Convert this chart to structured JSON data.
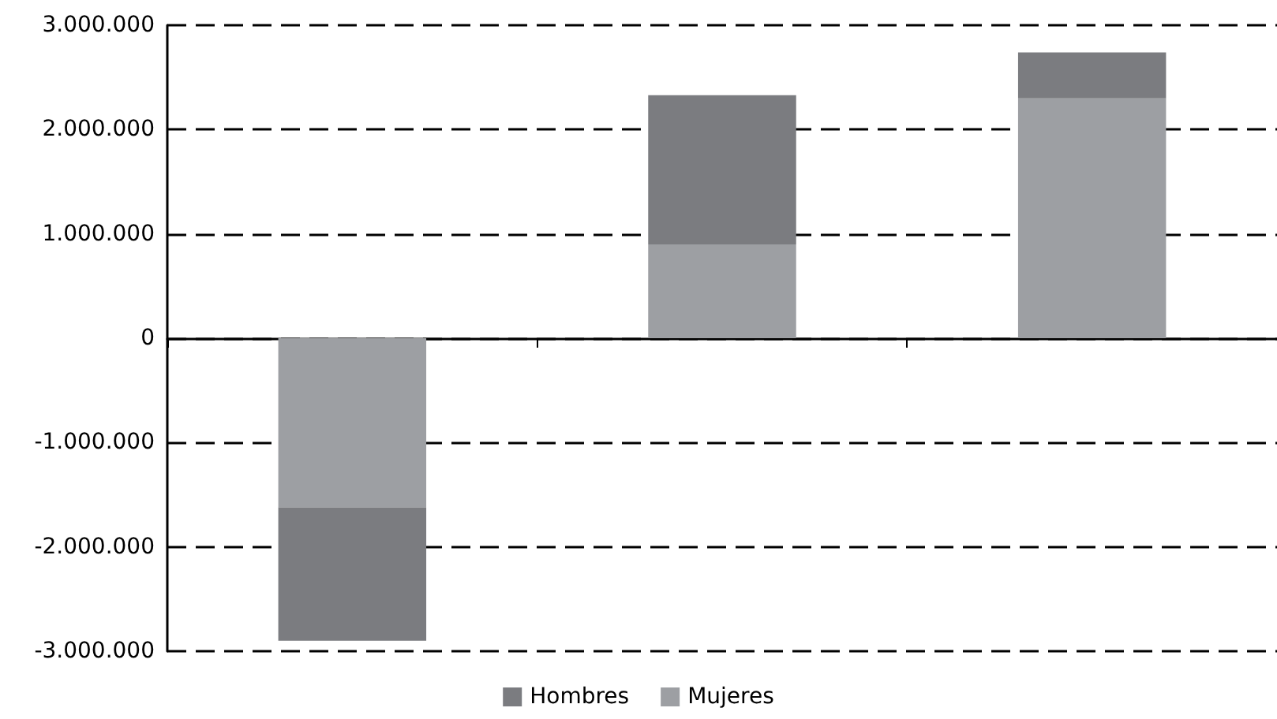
{
  "chart_data": {
    "type": "bar",
    "stacked": true,
    "categories": [
      null,
      null,
      null
    ],
    "series": [
      {
        "name": "Mujeres",
        "color": "#9d9fa3",
        "values": [
          -1620000,
          900000,
          2300000
        ]
      },
      {
        "name": "Hombres",
        "color": "#7b7c80",
        "values": [
          -1280000,
          1430000,
          440000
        ]
      }
    ],
    "ylim": [
      -3000000,
      3000000
    ],
    "yticks": [
      {
        "value": -3000000,
        "label": "-3.000.000"
      },
      {
        "value": -2000000,
        "label": "-2.000.000"
      },
      {
        "value": -1000000,
        "label": "-1.000.000"
      },
      0,
      {
        "value": 1000000,
        "label": "1.000.000"
      },
      {
        "value": 2000000,
        "label": "2.000.000"
      },
      {
        "value": 3000000,
        "label": "3.000.000"
      }
    ],
    "grid": "y",
    "legend": "bottom"
  }
}
